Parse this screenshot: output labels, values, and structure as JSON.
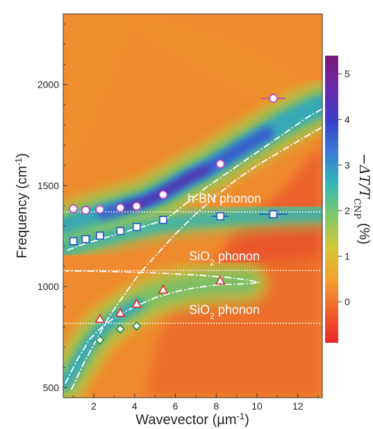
{
  "chart_data": {
    "type": "heatmap",
    "title": "",
    "xlabel": "Wavevector (µm",
    "xlabel_sup": "-1",
    "xlabel_end": ")",
    "ylabel": "Frequency (cm",
    "ylabel_sup": "-1",
    "ylabel_end": ")",
    "xlim": [
      0.5,
      13.2
    ],
    "ylim": [
      450,
      2350
    ],
    "xticks": [
      "2",
      "4",
      "6",
      "8",
      "10",
      "12"
    ],
    "yticks": [
      "500",
      "1000",
      "1500",
      "2000"
    ],
    "colorbar": {
      "label": "−ΔT/T",
      "label_sub": "CNP",
      "label_end": " (%)",
      "ticks": [
        "0",
        "1",
        "2",
        "3",
        "4",
        "5"
      ],
      "range": [
        -0.9,
        5.4
      ],
      "colors": [
        "#e8262a",
        "#f0632a",
        "#f4a030",
        "#d4c83a",
        "#7ec96a",
        "#33b6b8",
        "#3a78d8",
        "#3a3ec8",
        "#6a2aa8",
        "#7a1a78"
      ]
    },
    "annotations": [
      {
        "text": "h-BN phonon",
        "x": 8.4,
        "y": 1415
      },
      {
        "text": "SiO",
        "sub": "2",
        "end": " phonon",
        "x1": 8.4,
        "y1": 1130
      },
      {
        "text": "SiO",
        "sub": "2",
        "end": " phonon",
        "x1": 8.4,
        "y1": 865
      }
    ],
    "phonon_lines": [
      1370,
      1080,
      818
    ],
    "series": [
      {
        "marker": "circle",
        "color": "#c040c0",
        "points": [
          [
            1.0,
            1385
          ],
          [
            1.6,
            1378
          ],
          [
            2.3,
            1382
          ],
          [
            3.3,
            1390
          ],
          [
            4.1,
            1398
          ],
          [
            5.4,
            1455
          ],
          [
            8.2,
            1607
          ],
          [
            10.8,
            1932
          ]
        ],
        "xerr": [
          0,
          0,
          0,
          0,
          0,
          0,
          0,
          0.6
        ]
      },
      {
        "marker": "square",
        "color": "#2050c0",
        "points": [
          [
            1.0,
            1225
          ],
          [
            1.6,
            1235
          ],
          [
            2.3,
            1252
          ],
          [
            3.3,
            1275
          ],
          [
            4.1,
            1295
          ],
          [
            5.4,
            1330
          ],
          [
            8.2,
            1348
          ],
          [
            10.8,
            1358
          ]
        ],
        "xerr": [
          0,
          0,
          0,
          0,
          0,
          0,
          0.4,
          0.7
        ]
      },
      {
        "marker": "triangle",
        "color": "#e02a2a",
        "points": [
          [
            2.3,
            840
          ],
          [
            3.3,
            870
          ],
          [
            4.1,
            915
          ],
          [
            5.4,
            985
          ],
          [
            8.2,
            1030
          ]
        ],
        "xerr": [
          0,
          0,
          0,
          0,
          0
        ]
      },
      {
        "marker": "diamond",
        "color": "#1a8a3a",
        "points": [
          [
            2.3,
            735
          ],
          [
            3.3,
            790
          ],
          [
            4.1,
            805
          ]
        ],
        "xerr": [
          0,
          0,
          0
        ]
      }
    ]
  }
}
